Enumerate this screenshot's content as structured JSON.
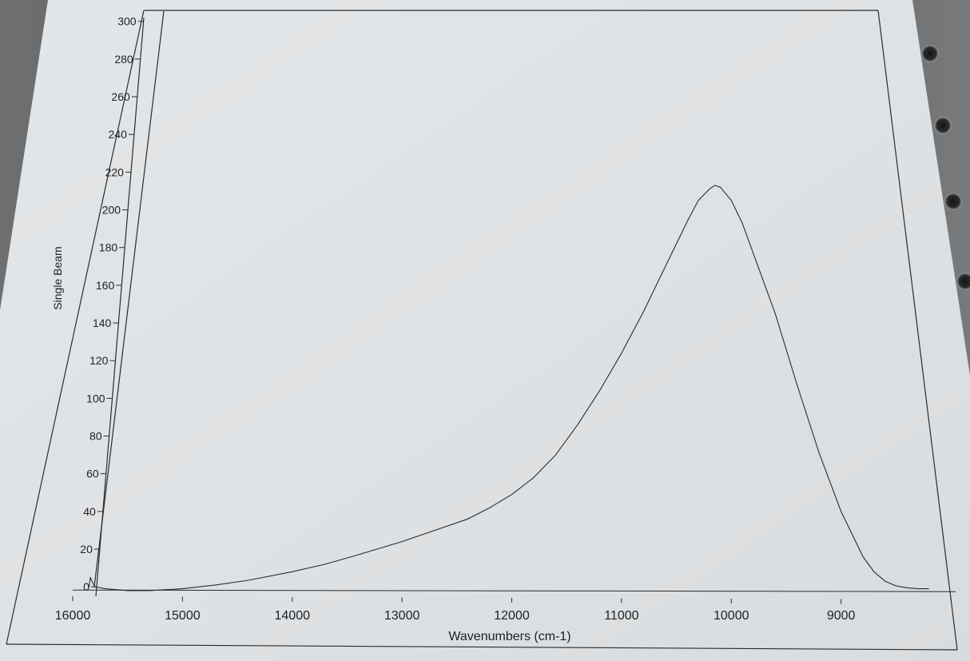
{
  "chart_data": {
    "type": "line",
    "title": "",
    "xlabel": "Wavenumbers (cm-1)",
    "ylabel": "Single Beam",
    "xlim": [
      16000,
      8000
    ],
    "ylim": [
      -5,
      302
    ],
    "x_reversed": true,
    "x_ticks": [
      16000,
      15000,
      14000,
      13000,
      12000,
      11000,
      10000,
      9000
    ],
    "y_ticks": [
      0,
      20,
      40,
      60,
      80,
      100,
      120,
      140,
      160,
      180,
      200,
      220,
      240,
      260,
      280,
      300
    ],
    "grid": false,
    "legend": "none",
    "line_color": "#2a2c2e",
    "series": [
      {
        "x": [
          15850,
          15840,
          15800,
          15700,
          15500,
          15300,
          15000,
          14700,
          14400,
          14000,
          13700,
          13400,
          13000,
          12700,
          12400,
          12200,
          12000,
          11800,
          11600,
          11400,
          11200,
          11000,
          10800,
          10600,
          10400,
          10300,
          10200,
          10150,
          10100,
          10000,
          9900,
          9800,
          9600,
          9400,
          9200,
          9000,
          8800,
          8700,
          8600,
          8500,
          8450,
          8400,
          8300,
          8200
        ],
        "y": [
          0,
          5,
          0,
          -1,
          -2,
          -2,
          -1,
          1,
          3.5,
          8,
          12,
          17,
          24,
          30,
          36,
          42,
          49,
          58,
          70,
          86,
          104,
          124,
          146,
          170,
          194,
          205,
          211,
          213,
          212,
          205,
          193,
          177,
          145,
          107,
          71,
          40,
          16,
          8,
          3,
          0.5,
          0,
          -0.5,
          -1,
          -1
        ]
      }
    ]
  }
}
